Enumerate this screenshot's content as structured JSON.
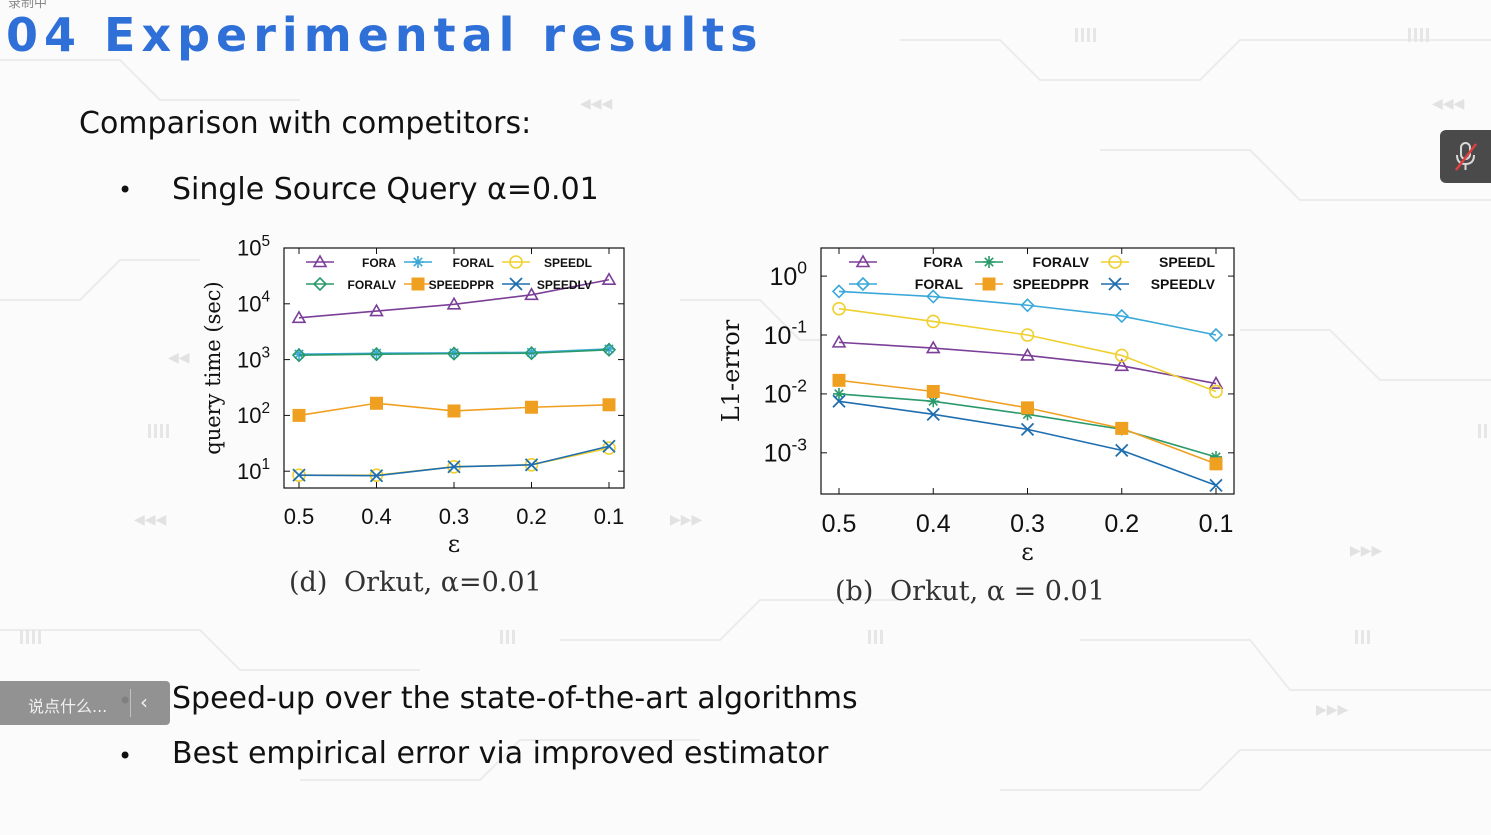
{
  "recording_label": "录制中",
  "slide": {
    "title": "04 Experimental results",
    "subtitle": "Comparison with competitors:",
    "bullet_char": "•",
    "bullets": [
      "Single Source Query α=0.01",
      "Speed-up over the state-of-the-art algorithms",
      "Best empirical error via improved estimator"
    ]
  },
  "chat_input": {
    "placeholder": "说点什么..."
  },
  "colors": {
    "title": "#2f6fd8",
    "FORA": "#7b3f98",
    "FORAL": "#3aa8d8",
    "FORALV": "#2a9a6a",
    "SPEEDL": "#f0d030",
    "SPEEDPPR": "#f0a020",
    "SPEEDLV": "#1f6fb0"
  },
  "chart_data": [
    {
      "type": "line",
      "caption_prefix": "(d)",
      "caption": "Orkut, α=0.01",
      "xlabel": "ε",
      "ylabel": "query time (sec)",
      "x": [
        0.5,
        0.4,
        0.3,
        0.2,
        0.1
      ],
      "x_ticks": [
        "0.5",
        "0.4",
        "0.3",
        "0.2",
        "0.1"
      ],
      "y_scale": "log",
      "ylim": [
        5,
        100000
      ],
      "y_ticks": [
        10,
        100,
        1000,
        10000,
        100000
      ],
      "y_tick_exps": [
        "1",
        "2",
        "3",
        "4",
        "5"
      ],
      "legend_position": "top",
      "legend_order": [
        "FORA",
        "FORAL",
        "SPEEDL",
        "FORALV",
        "SPEEDPPR",
        "SPEEDLV"
      ],
      "series": [
        {
          "name": "FORA",
          "marker": "triangle",
          "values": [
            5600,
            7400,
            9800,
            14500,
            27000
          ]
        },
        {
          "name": "FORAL",
          "marker": "star",
          "values": [
            1250,
            1300,
            1320,
            1350,
            1550
          ]
        },
        {
          "name": "SPEEDL",
          "marker": "circle",
          "values": [
            8.5,
            8.5,
            12,
            13,
            26
          ]
        },
        {
          "name": "FORALV",
          "marker": "diamond",
          "values": [
            1200,
            1250,
            1280,
            1300,
            1500
          ]
        },
        {
          "name": "SPEEDPPR",
          "marker": "square",
          "values": [
            100,
            165,
            120,
            140,
            155
          ]
        },
        {
          "name": "SPEEDLV",
          "marker": "x",
          "values": [
            8.5,
            8.3,
            12,
            13,
            28
          ]
        }
      ]
    },
    {
      "type": "line",
      "caption_prefix": "(b)",
      "caption": "Orkut, α = 0.01",
      "xlabel": "ε",
      "ylabel": "L1-error",
      "x": [
        0.5,
        0.4,
        0.3,
        0.2,
        0.1
      ],
      "x_ticks": [
        "0.5",
        "0.4",
        "0.3",
        "0.2",
        "0.1"
      ],
      "y_scale": "log",
      "ylim": [
        0.0002,
        3
      ],
      "y_ticks": [
        0.001,
        0.01,
        0.1,
        1
      ],
      "y_tick_exps": [
        "-3",
        "-2",
        "-1",
        "0"
      ],
      "legend_position": "top",
      "legend_order": [
        "FORA",
        "FORALV",
        "SPEEDL",
        "FORAL",
        "SPEEDPPR",
        "SPEEDLV"
      ],
      "series": [
        {
          "name": "FORA",
          "marker": "triangle",
          "values": [
            0.075,
            0.06,
            0.045,
            0.03,
            0.015
          ]
        },
        {
          "name": "FORALV",
          "marker": "star",
          "values": [
            0.01,
            0.0075,
            0.0045,
            0.0025,
            0.00085
          ]
        },
        {
          "name": "SPEEDL",
          "marker": "circle",
          "values": [
            0.28,
            0.17,
            0.1,
            0.045,
            0.011
          ]
        },
        {
          "name": "FORAL",
          "marker": "diamond",
          "values": [
            0.55,
            0.45,
            0.32,
            0.21,
            0.1
          ]
        },
        {
          "name": "SPEEDPPR",
          "marker": "square",
          "values": [
            0.017,
            0.011,
            0.0058,
            0.0026,
            0.00065
          ]
        },
        {
          "name": "SPEEDLV",
          "marker": "x",
          "values": [
            0.0075,
            0.0045,
            0.0025,
            0.0011,
            0.00028
          ]
        }
      ]
    }
  ]
}
